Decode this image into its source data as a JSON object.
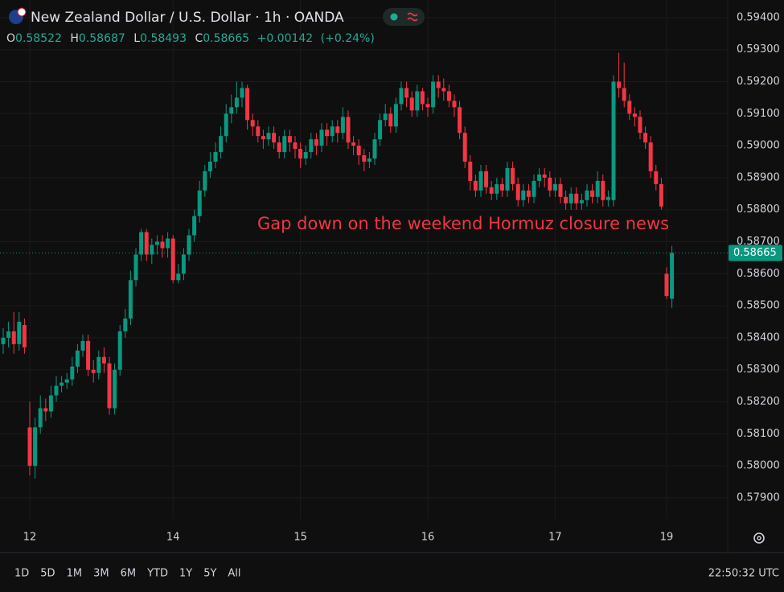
{
  "chart_data": {
    "type": "candlestick",
    "title": "New Zealand Dollar / U.S. Dollar · 1h · OANDA",
    "ohlc_labels": [
      "O",
      "H",
      "L",
      "C"
    ],
    "change": {
      "value": 0.00142,
      "label": "+0.00142"
    },
    "change_percent": {
      "value": 0.24,
      "label": "(+0.24%)"
    },
    "annotation": "Gap down on the weekend Hormuz closure news",
    "up_color": "#089981",
    "down_color": "#f23645",
    "grid": true,
    "categories": [
      null,
      null,
      null,
      null,
      null,
      "12",
      null,
      null,
      null,
      null,
      null,
      null,
      null,
      null,
      null,
      null,
      null,
      null,
      null,
      null,
      null,
      null,
      null,
      null,
      null,
      null,
      null,
      null,
      null,
      null,
      null,
      null,
      "14",
      null,
      null,
      null,
      null,
      null,
      null,
      null,
      null,
      null,
      null,
      null,
      null,
      null,
      null,
      null,
      null,
      null,
      null,
      null,
      null,
      null,
      null,
      null,
      "15",
      null,
      null,
      null,
      null,
      null,
      null,
      null,
      null,
      null,
      null,
      null,
      null,
      null,
      null,
      null,
      null,
      null,
      null,
      null,
      null,
      null,
      null,
      null,
      "16",
      null,
      null,
      null,
      null,
      null,
      null,
      null,
      null,
      null,
      null,
      null,
      null,
      null,
      null,
      null,
      null,
      null,
      null,
      null,
      null,
      null,
      null,
      null,
      "17",
      null,
      null,
      null,
      null,
      null,
      null,
      null,
      null,
      null,
      null,
      null,
      null,
      null,
      null,
      null,
      null,
      null,
      null,
      null,
      null,
      "19",
      null
    ],
    "open": [
      0.5838,
      0.584,
      0.5842,
      0.5838,
      0.5844,
      0.5812,
      0.58,
      0.5812,
      0.5818,
      0.5817,
      0.5822,
      0.5825,
      0.5826,
      0.5827,
      0.5831,
      0.5836,
      0.5839,
      0.583,
      0.5829,
      0.5834,
      0.5832,
      0.5818,
      0.583,
      0.5842,
      0.5846,
      0.5858,
      0.5866,
      0.5873,
      0.5866,
      0.5869,
      0.587,
      0.5868,
      0.5871,
      0.5858,
      0.586,
      0.5866,
      0.5872,
      0.5878,
      0.5886,
      0.5892,
      0.5895,
      0.5898,
      0.5903,
      0.591,
      0.5912,
      0.5915,
      0.5918,
      0.5908,
      0.5906,
      0.5903,
      0.5902,
      0.5904,
      0.5901,
      0.5898,
      0.5903,
      0.5901,
      0.5899,
      0.5896,
      0.5898,
      0.5902,
      0.59,
      0.5905,
      0.5903,
      0.5906,
      0.5904,
      0.5909,
      0.5901,
      0.59,
      0.5897,
      0.5895,
      0.5896,
      0.5902,
      0.5908,
      0.591,
      0.5906,
      0.5913,
      0.5918,
      0.5915,
      0.5911,
      0.5917,
      0.5913,
      0.5912,
      0.592,
      0.5918,
      0.5917,
      0.5914,
      0.5912,
      0.5904,
      0.5895,
      0.5889,
      0.5886,
      0.5892,
      0.5887,
      0.5885,
      0.5888,
      0.5886,
      0.5893,
      0.5888,
      0.5883,
      0.5886,
      0.5884,
      0.5889,
      0.5891,
      0.589,
      0.5886,
      0.5888,
      0.5884,
      0.5882,
      0.5885,
      0.5882,
      0.5883,
      0.5886,
      0.5884,
      0.5889,
      0.5883,
      0.5883,
      0.592,
      0.5918,
      0.5914,
      0.591,
      0.5909,
      0.5904,
      0.5901,
      0.5892,
      0.5888,
      0.586,
      0.58522
    ],
    "high": [
      0.5843,
      0.5845,
      0.5848,
      0.5848,
      0.5846,
      0.582,
      0.5815,
      0.5822,
      0.5821,
      0.5825,
      0.5828,
      0.5828,
      0.5829,
      0.5834,
      0.5838,
      0.5841,
      0.5841,
      0.5833,
      0.5836,
      0.5837,
      0.5834,
      0.5832,
      0.5844,
      0.5849,
      0.5861,
      0.5868,
      0.5874,
      0.5874,
      0.5871,
      0.5872,
      0.5872,
      0.5873,
      0.5872,
      0.5863,
      0.5868,
      0.5874,
      0.588,
      0.5889,
      0.5894,
      0.5898,
      0.5901,
      0.5906,
      0.5913,
      0.5916,
      0.592,
      0.592,
      0.5919,
      0.591,
      0.5908,
      0.5905,
      0.5906,
      0.5906,
      0.5903,
      0.5905,
      0.5905,
      0.5903,
      0.5901,
      0.59,
      0.5904,
      0.5904,
      0.5907,
      0.5907,
      0.5908,
      0.5908,
      0.5912,
      0.5911,
      0.5903,
      0.5902,
      0.5899,
      0.5898,
      0.5904,
      0.591,
      0.5913,
      0.5912,
      0.5915,
      0.592,
      0.592,
      0.5917,
      0.5919,
      0.5918,
      0.5915,
      0.5922,
      0.5922,
      0.5921,
      0.5919,
      0.5916,
      0.5914,
      0.5906,
      0.5897,
      0.5891,
      0.5894,
      0.5894,
      0.5889,
      0.589,
      0.589,
      0.5895,
      0.5895,
      0.589,
      0.5888,
      0.5888,
      0.5891,
      0.5893,
      0.5893,
      0.5892,
      0.589,
      0.589,
      0.5886,
      0.5887,
      0.5887,
      0.5885,
      0.5888,
      0.5888,
      0.5892,
      0.5891,
      0.5886,
      0.5922,
      0.5929,
      0.5926,
      0.5916,
      0.5912,
      0.5911,
      0.5906,
      0.5903,
      0.5894,
      0.589,
      0.5862,
      0.58687
    ],
    "low": [
      0.5835,
      0.5837,
      0.5835,
      0.5836,
      0.5835,
      0.5797,
      0.5796,
      0.581,
      0.5814,
      0.5815,
      0.582,
      0.5823,
      0.5824,
      0.5825,
      0.5829,
      0.5834,
      0.5828,
      0.5826,
      0.5827,
      0.5829,
      0.5816,
      0.5816,
      0.5828,
      0.584,
      0.5844,
      0.5856,
      0.5864,
      0.5864,
      0.5863,
      0.5866,
      0.5865,
      0.5865,
      0.5857,
      0.5857,
      0.5858,
      0.5864,
      0.587,
      0.5876,
      0.5884,
      0.589,
      0.5893,
      0.5896,
      0.5901,
      0.5907,
      0.591,
      0.5912,
      0.5905,
      0.5903,
      0.5901,
      0.5899,
      0.59,
      0.5899,
      0.5896,
      0.5896,
      0.5898,
      0.5896,
      0.5893,
      0.5894,
      0.5896,
      0.5897,
      0.5898,
      0.59,
      0.5901,
      0.5901,
      0.5902,
      0.5899,
      0.5897,
      0.5894,
      0.5892,
      0.5893,
      0.5894,
      0.59,
      0.5906,
      0.5904,
      0.5904,
      0.5911,
      0.5912,
      0.5909,
      0.5909,
      0.5911,
      0.5909,
      0.591,
      0.5915,
      0.5914,
      0.5912,
      0.5909,
      0.5902,
      0.5893,
      0.5886,
      0.5884,
      0.5884,
      0.5885,
      0.5883,
      0.5883,
      0.5884,
      0.5884,
      0.5886,
      0.5881,
      0.5881,
      0.5882,
      0.5882,
      0.5887,
      0.5887,
      0.5884,
      0.5884,
      0.5882,
      0.588,
      0.588,
      0.588,
      0.588,
      0.5881,
      0.5882,
      0.5882,
      0.5881,
      0.5881,
      0.5881,
      0.5915,
      0.5912,
      0.5908,
      0.5906,
      0.5902,
      0.5899,
      0.589,
      0.5886,
      0.588,
      0.5852,
      0.58493
    ],
    "close": [
      0.584,
      0.5842,
      0.5838,
      0.5845,
      0.5837,
      0.58,
      0.5812,
      0.5818,
      0.5817,
      0.5822,
      0.5825,
      0.5826,
      0.5827,
      0.5831,
      0.5836,
      0.5839,
      0.583,
      0.5829,
      0.5834,
      0.5832,
      0.5818,
      0.583,
      0.5842,
      0.5846,
      0.5858,
      0.5866,
      0.5873,
      0.5866,
      0.5869,
      0.587,
      0.5868,
      0.5871,
      0.5858,
      0.586,
      0.5866,
      0.5872,
      0.5878,
      0.5886,
      0.5892,
      0.5895,
      0.5898,
      0.5903,
      0.591,
      0.5912,
      0.5915,
      0.5918,
      0.5908,
      0.5906,
      0.5903,
      0.5902,
      0.5904,
      0.5901,
      0.5898,
      0.5903,
      0.5901,
      0.5899,
      0.5896,
      0.5898,
      0.5902,
      0.59,
      0.5905,
      0.5903,
      0.5906,
      0.5904,
      0.5909,
      0.5901,
      0.59,
      0.5897,
      0.5895,
      0.5896,
      0.5902,
      0.5908,
      0.591,
      0.5906,
      0.5913,
      0.5918,
      0.5915,
      0.5911,
      0.5917,
      0.5913,
      0.5912,
      0.592,
      0.5918,
      0.5917,
      0.5914,
      0.5912,
      0.5904,
      0.5895,
      0.5889,
      0.5886,
      0.5892,
      0.5887,
      0.5885,
      0.5888,
      0.5886,
      0.5893,
      0.5888,
      0.5883,
      0.5886,
      0.5884,
      0.5889,
      0.5891,
      0.589,
      0.5886,
      0.5888,
      0.5884,
      0.5882,
      0.5885,
      0.5882,
      0.5883,
      0.5886,
      0.5884,
      0.5889,
      0.5883,
      0.5884,
      0.592,
      0.5918,
      0.5914,
      0.591,
      0.5909,
      0.5904,
      0.5901,
      0.5892,
      0.5888,
      0.5881,
      0.5853,
      0.58665
    ],
    "ylim": [
      0.57734,
      0.59455
    ],
    "yticks": [
      {
        "value": 0.579,
        "label": "0.57900"
      },
      {
        "value": 0.58,
        "label": "0.58000"
      },
      {
        "value": 0.581,
        "label": "0.58100"
      },
      {
        "value": 0.582,
        "label": "0.58200"
      },
      {
        "value": 0.583,
        "label": "0.58300"
      },
      {
        "value": 0.584,
        "label": "0.58400"
      },
      {
        "value": 0.585,
        "label": "0.58500"
      },
      {
        "value": 0.586,
        "label": "0.58600"
      },
      {
        "value": 0.587,
        "label": "0.58700"
      },
      {
        "value": 0.588,
        "label": "0.58800"
      },
      {
        "value": 0.589,
        "label": "0.58900"
      },
      {
        "value": 0.59,
        "label": "0.59000"
      },
      {
        "value": 0.591,
        "label": "0.59100"
      },
      {
        "value": 0.592,
        "label": "0.59200"
      },
      {
        "value": 0.593,
        "label": "0.59300"
      },
      {
        "value": 0.594,
        "label": "0.59400"
      }
    ]
  },
  "toolbar": {
    "ranges": [
      "1D",
      "5D",
      "1M",
      "3M",
      "6M",
      "YTD",
      "1Y",
      "5Y",
      "All"
    ],
    "clock": "22:50:32 UTC"
  }
}
